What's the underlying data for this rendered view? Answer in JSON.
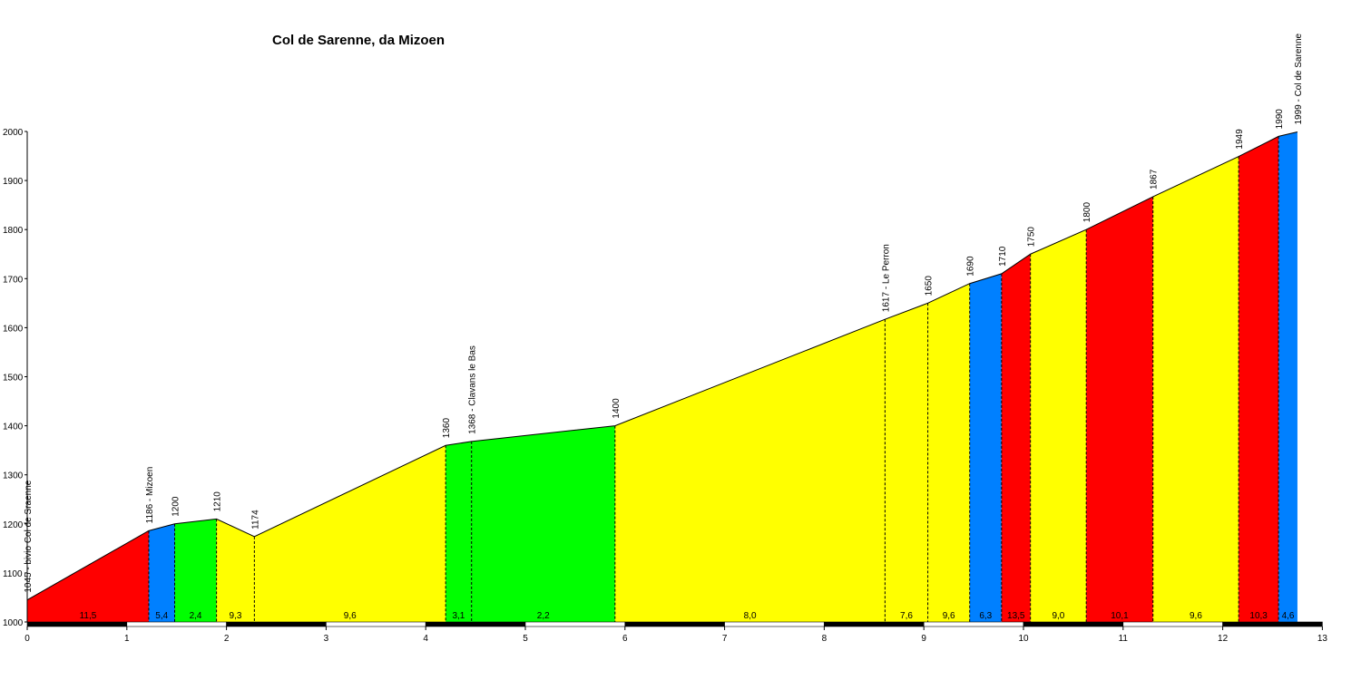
{
  "chart_data": {
    "type": "area",
    "title": "Col de Sarenne, da Mizoen",
    "xlabel": "",
    "ylabel": "",
    "xlim": [
      0,
      13
    ],
    "ylim": [
      1000,
      2000
    ],
    "x_ticks": [
      "0",
      "1",
      "2",
      "3",
      "4",
      "5",
      "6",
      "7",
      "8",
      "9",
      "10",
      "11",
      "12",
      "13"
    ],
    "y_ticks": [
      "1000",
      "1100",
      "1200",
      "1300",
      "1400",
      "1500",
      "1600",
      "1700",
      "1800",
      "1900",
      "2000"
    ],
    "grid": false,
    "colors": {
      "red": "#ff0000",
      "blue": "#0080ff",
      "green": "#00ff00",
      "yellow": "#ffff00",
      "outline": "#000000"
    },
    "points": [
      {
        "x": 0.0,
        "y": 1045,
        "label": "1045 - bivio Col de Sraenne"
      },
      {
        "x": 1.22,
        "y": 1186,
        "label": "1186 - Mizoen"
      },
      {
        "x": 1.48,
        "y": 1200,
        "label": "1200"
      },
      {
        "x": 1.9,
        "y": 1210,
        "label": "1210"
      },
      {
        "x": 2.28,
        "y": 1174,
        "label": "1174"
      },
      {
        "x": 4.2,
        "y": 1360,
        "label": "1360"
      },
      {
        "x": 4.46,
        "y": 1368,
        "label": "1368 - Clavans le Bas"
      },
      {
        "x": 5.9,
        "y": 1400,
        "label": "1400"
      },
      {
        "x": 8.61,
        "y": 1617,
        "label": "1617 - Le Perron"
      },
      {
        "x": 9.04,
        "y": 1650,
        "label": "1650"
      },
      {
        "x": 9.46,
        "y": 1690,
        "label": "1690"
      },
      {
        "x": 9.78,
        "y": 1710,
        "label": "1710"
      },
      {
        "x": 10.07,
        "y": 1750,
        "label": "1750"
      },
      {
        "x": 10.63,
        "y": 1800,
        "label": "1800"
      },
      {
        "x": 11.3,
        "y": 1867,
        "label": "1867"
      },
      {
        "x": 12.16,
        "y": 1949,
        "label": "1949"
      },
      {
        "x": 12.56,
        "y": 1990,
        "label": "1990"
      },
      {
        "x": 12.75,
        "y": 1999,
        "label": "1999 - Col de Sarenne"
      }
    ],
    "segments": [
      {
        "gradient": "11,5",
        "color": "red"
      },
      {
        "gradient": "5,4",
        "color": "blue"
      },
      {
        "gradient": "2,4",
        "color": "green"
      },
      {
        "gradient": "9,3",
        "color": "yellow"
      },
      {
        "gradient": "9,6",
        "color": "yellow"
      },
      {
        "gradient": "3,1",
        "color": "green"
      },
      {
        "gradient": "2,2",
        "color": "green"
      },
      {
        "gradient": "8,0",
        "color": "yellow"
      },
      {
        "gradient": "7,6",
        "color": "yellow"
      },
      {
        "gradient": "9,6",
        "color": "yellow"
      },
      {
        "gradient": "6,3",
        "color": "blue"
      },
      {
        "gradient": "13,5",
        "color": "red"
      },
      {
        "gradient": "9,0",
        "color": "yellow"
      },
      {
        "gradient": "10,1",
        "color": "red"
      },
      {
        "gradient": "9,6",
        "color": "yellow"
      },
      {
        "gradient": "10,3",
        "color": "red"
      },
      {
        "gradient": "4,6",
        "color": "blue"
      }
    ]
  }
}
